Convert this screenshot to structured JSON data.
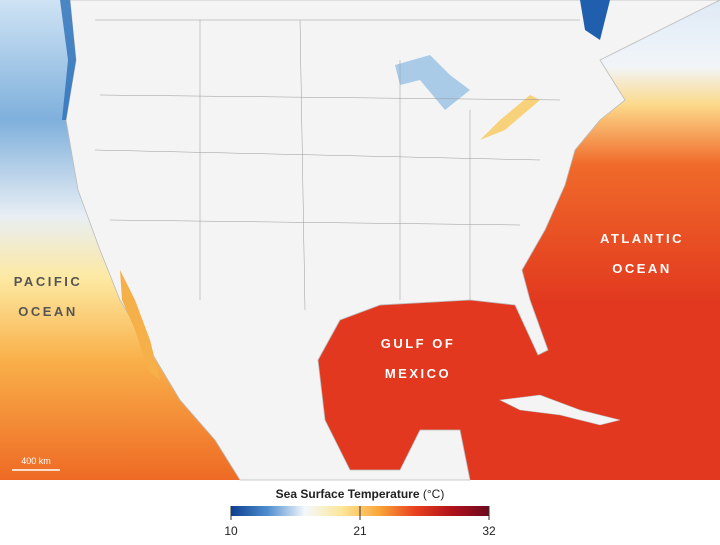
{
  "map": {
    "labels": [
      {
        "lines": [
          "PACIFIC",
          "OCEAN"
        ]
      },
      {
        "lines": [
          "ATLANTIC",
          "OCEAN"
        ]
      },
      {
        "lines": [
          "GULF OF",
          "MEXICO"
        ]
      }
    ],
    "scale_bar": "400 km",
    "colorbar": {
      "title": "Sea Surface Temperature",
      "unit": "(°C)",
      "lim": [
        10,
        32
      ],
      "ticks": [
        10,
        21,
        32
      ],
      "colors": [
        "#0d3f8f",
        "#4f8fd0",
        "#f4f8fc",
        "#fde79a",
        "#f9a83a",
        "#e8401f",
        "#b0121b",
        "#6b0b1e"
      ]
    }
  }
}
